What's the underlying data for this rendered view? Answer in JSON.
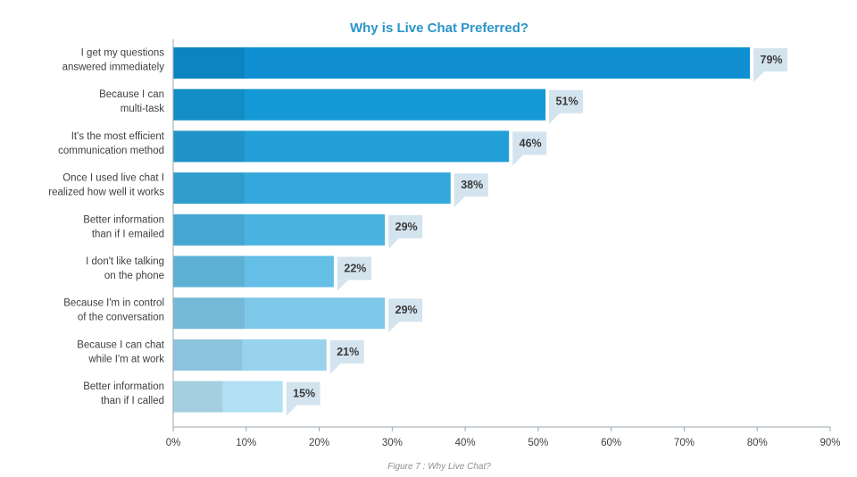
{
  "chart_data": {
    "type": "bar",
    "orientation": "horizontal",
    "title": "Why is Live Chat Preferred?",
    "caption": "Figure 7 : Why Live Chat?",
    "categories": [
      [
        "I get my questions",
        "answered immediately"
      ],
      [
        "Because I can",
        "multi-task"
      ],
      [
        "It's the most efficient",
        "communication method"
      ],
      [
        "Once I used live chat I",
        "realized how well it works"
      ],
      [
        "Better information",
        "than if I emailed"
      ],
      [
        "I don't like talking",
        "on the phone"
      ],
      [
        "Because I'm in control",
        "of the conversation"
      ],
      [
        "Because I can chat",
        "while I'm at work"
      ],
      [
        "Better information",
        "than if I called"
      ]
    ],
    "values": [
      79,
      51,
      46,
      38,
      29,
      22,
      29,
      21,
      15
    ],
    "value_labels": [
      "79%",
      "51%",
      "46%",
      "38%",
      "29%",
      "22%",
      "29%",
      "21%",
      "15%"
    ],
    "xlim": [
      0,
      90
    ],
    "xticks": [
      0,
      10,
      20,
      30,
      40,
      50,
      60,
      70,
      80,
      90
    ],
    "xtick_labels": [
      "0%",
      "10%",
      "20%",
      "30%",
      "40%",
      "50%",
      "60%",
      "70%",
      "80%",
      "90%"
    ],
    "grid": false,
    "legend": "none",
    "colors": {
      "title": "#2a95c8",
      "bars": [
        "#0f8fd1",
        "#1598d6",
        "#239fd8",
        "#34a8dc",
        "#4bb3e1",
        "#64beE5",
        "#7ec8e9",
        "#98d3ee",
        "#b2dff3"
      ],
      "callout": "#d4e4ef",
      "text": "#404040",
      "axis": "#9aa6ae",
      "caption": "#8a8f93"
    }
  }
}
